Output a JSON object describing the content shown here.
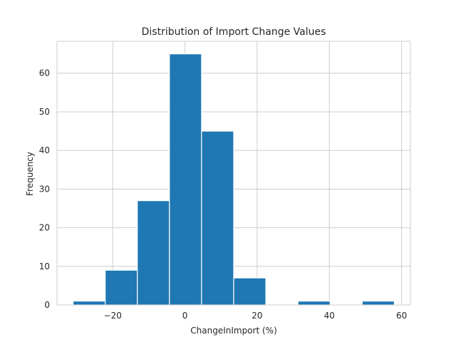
{
  "chart_data": {
    "type": "bar",
    "title": "Distribution of Import Change Values",
    "xlabel": "ChangeInImport (%)",
    "ylabel": "Frequency",
    "bin_edges": [
      -31.0,
      -22.1,
      -13.2,
      -4.3,
      4.6,
      13.5,
      22.4,
      31.3,
      40.2,
      49.1,
      58.0
    ],
    "values": [
      1,
      9,
      27,
      65,
      45,
      7,
      0,
      1,
      0,
      1
    ],
    "xlim": [
      -35.45,
      62.45
    ],
    "ylim": [
      0,
      68.25
    ],
    "x_ticks": [
      -20,
      0,
      20,
      40,
      60
    ],
    "x_tick_labels": [
      "−20",
      "0",
      "20",
      "40",
      "60"
    ],
    "y_ticks": [
      0,
      10,
      20,
      30,
      40,
      50,
      60
    ],
    "y_tick_labels": [
      "0",
      "10",
      "20",
      "30",
      "40",
      "50",
      "60"
    ],
    "grid": true,
    "bar_color": "#1f77b4",
    "grid_color": "#cccccc"
  }
}
